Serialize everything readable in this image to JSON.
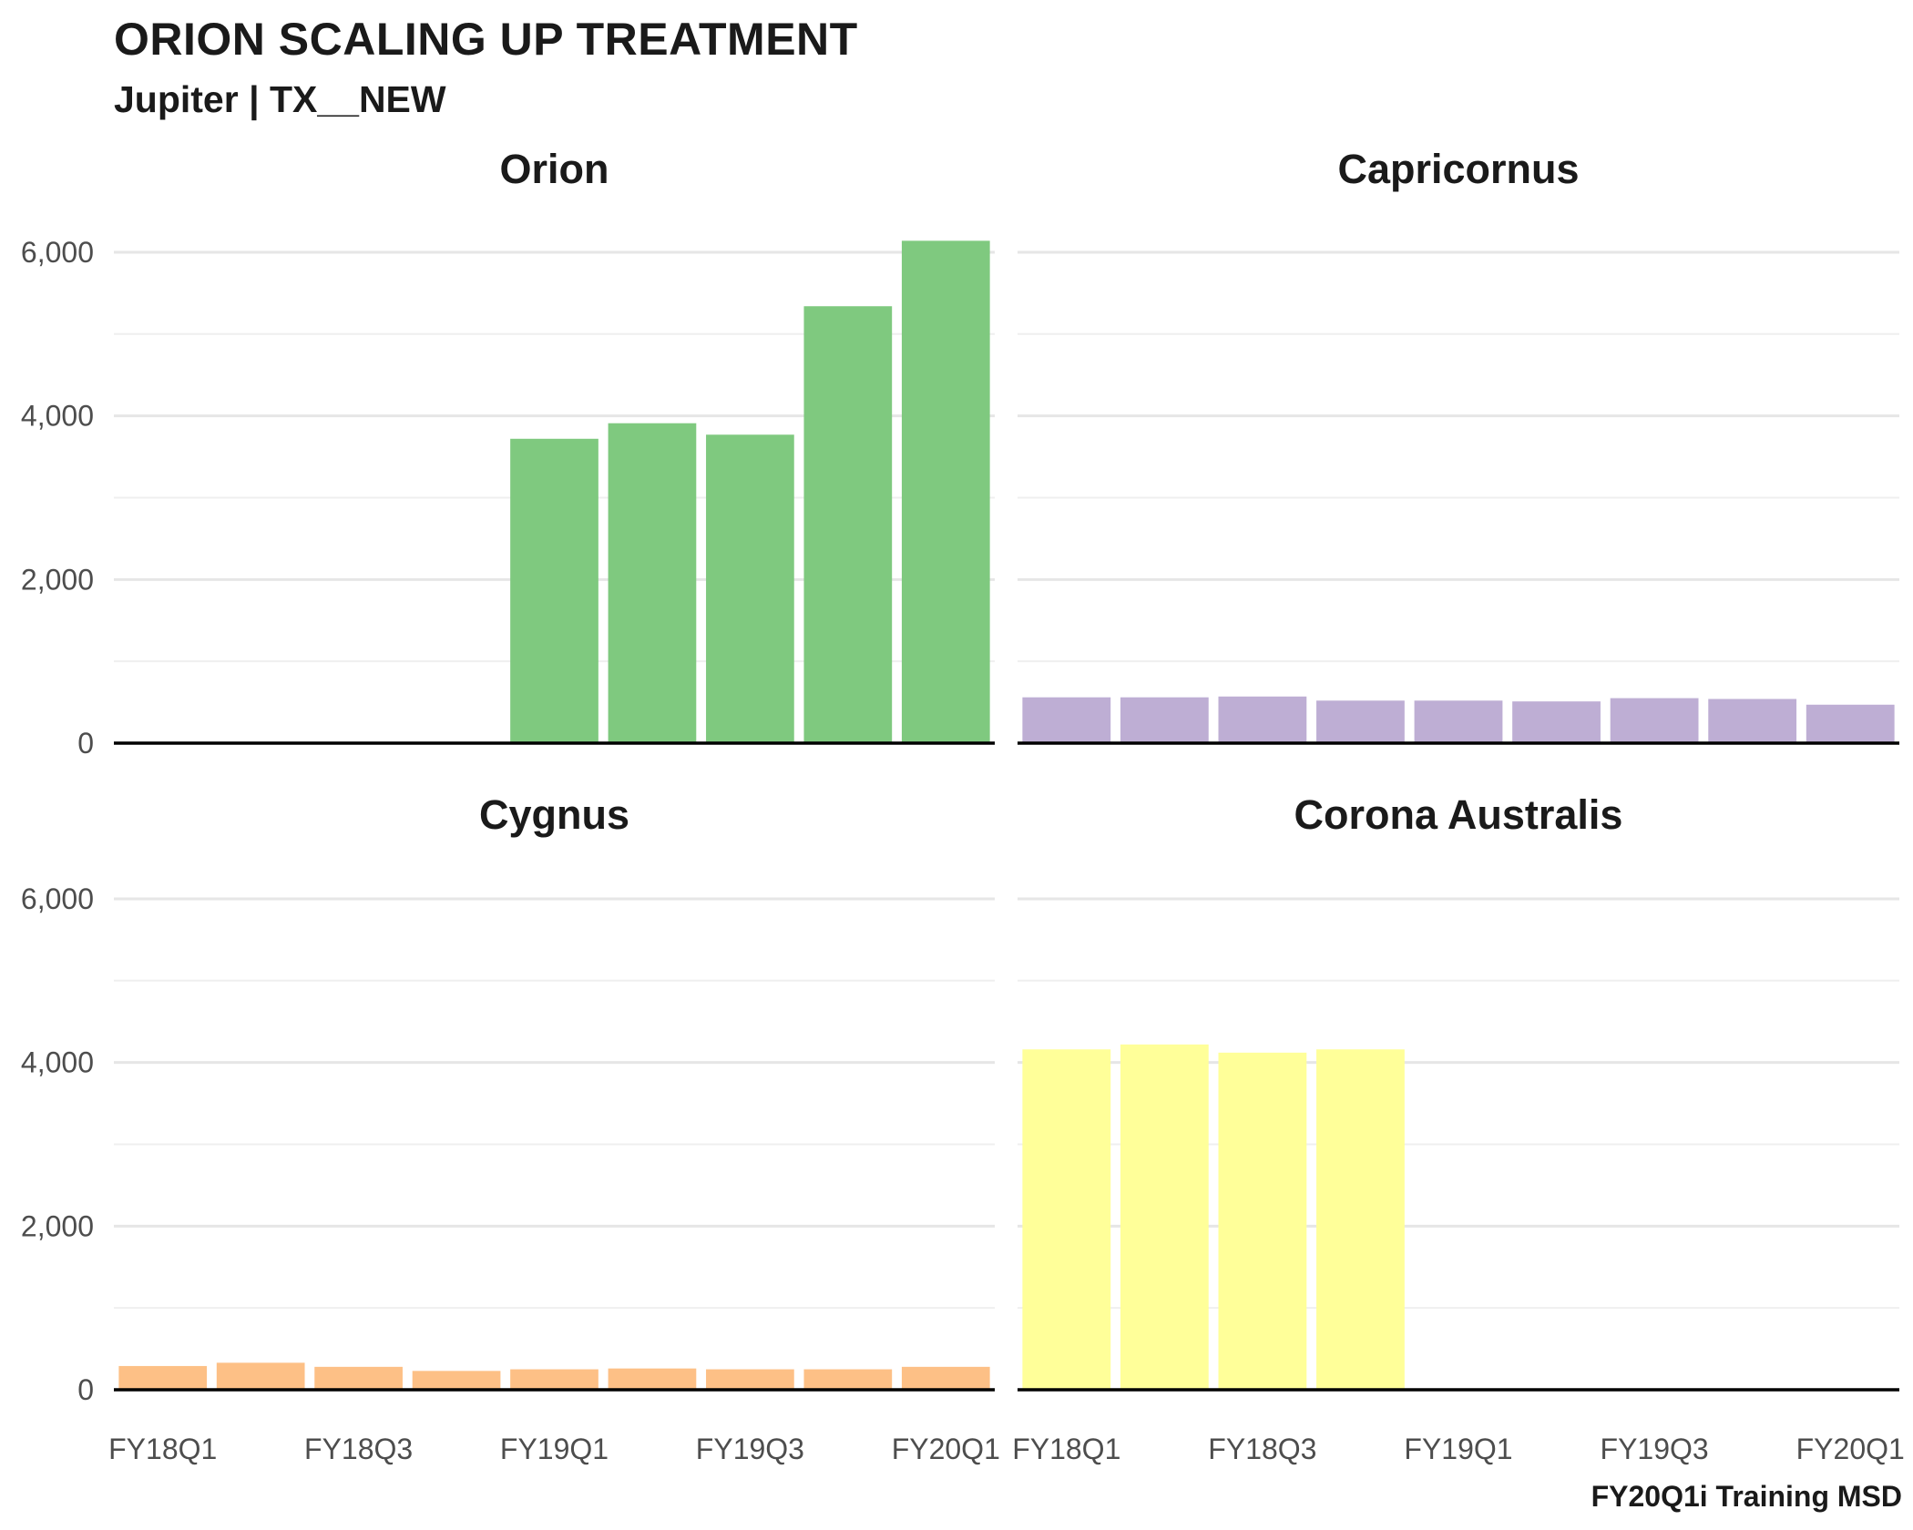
{
  "title": "ORION SCALING UP TREATMENT",
  "subtitle": "Jupiter | TX__NEW",
  "caption": "FY20Q1i Training MSD",
  "chart_data": {
    "type": "bar",
    "layout": "facet-grid-2x2",
    "categories": [
      "FY18Q1",
      "FY18Q2",
      "FY18Q3",
      "FY18Q4",
      "FY19Q1",
      "FY19Q2",
      "FY19Q3",
      "FY19Q4",
      "FY20Q1"
    ],
    "x_tick_labels": [
      "FY18Q1",
      "FY18Q3",
      "FY19Q1",
      "FY19Q3",
      "FY20Q1"
    ],
    "y_ticks": [
      0,
      2000,
      4000,
      6000
    ],
    "y_tick_labels": [
      "0",
      "2,000",
      "4,000",
      "6,000"
    ],
    "ylim": [
      0,
      6300
    ],
    "grid": "horizontal",
    "legend": "none",
    "panels": [
      {
        "title": "Orion",
        "color": "#7fc97f",
        "values": [
          null,
          null,
          null,
          null,
          3720,
          3910,
          3770,
          5340,
          6140
        ]
      },
      {
        "title": "Capricornus",
        "color": "#beaed4",
        "values": [
          560,
          560,
          570,
          520,
          520,
          510,
          550,
          540,
          470
        ]
      },
      {
        "title": "Cygnus",
        "color": "#fdc086",
        "values": [
          290,
          330,
          280,
          230,
          250,
          260,
          250,
          250,
          280
        ]
      },
      {
        "title": "Corona Australis",
        "color": "#ffff99",
        "values": [
          4160,
          4220,
          4120,
          4160,
          null,
          null,
          null,
          null,
          null
        ]
      }
    ]
  }
}
